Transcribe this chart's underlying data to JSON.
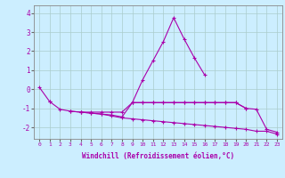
{
  "xlabel": "Windchill (Refroidissement éolien,°C)",
  "background_color": "#cceeff",
  "grid_color": "#aacccc",
  "line_color": "#aa00aa",
  "ylim": [
    -2.6,
    4.4
  ],
  "xlim": [
    -0.5,
    23.5
  ],
  "y1": [
    0.1,
    -0.65,
    null,
    null,
    null,
    null,
    null,
    null,
    null,
    -0.7,
    0.5,
    1.5,
    2.5,
    3.75,
    2.65,
    1.65,
    0.75,
    null,
    null,
    null,
    null,
    null,
    null,
    null
  ],
  "y2": [
    null,
    -0.65,
    -1.05,
    -1.15,
    -1.2,
    -1.2,
    -1.2,
    -1.2,
    -1.2,
    -0.7,
    -0.7,
    -0.7,
    -0.7,
    -0.7,
    -0.7,
    -0.7,
    -0.7,
    -0.7,
    -0.7,
    -0.7,
    -1.0,
    -1.05,
    -2.1,
    -2.25
  ],
  "y3": [
    null,
    null,
    null,
    -1.15,
    -1.2,
    -1.25,
    -1.3,
    -1.4,
    -1.5,
    -1.55,
    -1.6,
    -1.65,
    -1.7,
    -1.75,
    -1.8,
    -1.85,
    -1.9,
    -1.95,
    -2.0,
    -2.05,
    -2.1,
    -2.2,
    -2.2,
    -2.35
  ],
  "y4": [
    null,
    null,
    null,
    null,
    -1.2,
    -1.25,
    -1.3,
    -1.35,
    -1.45,
    -0.7,
    -0.7,
    -0.7,
    -0.7,
    -0.7,
    -0.7,
    -0.7,
    -0.7,
    -0.7,
    -0.7,
    -0.7,
    -1.0,
    null,
    null,
    null
  ]
}
